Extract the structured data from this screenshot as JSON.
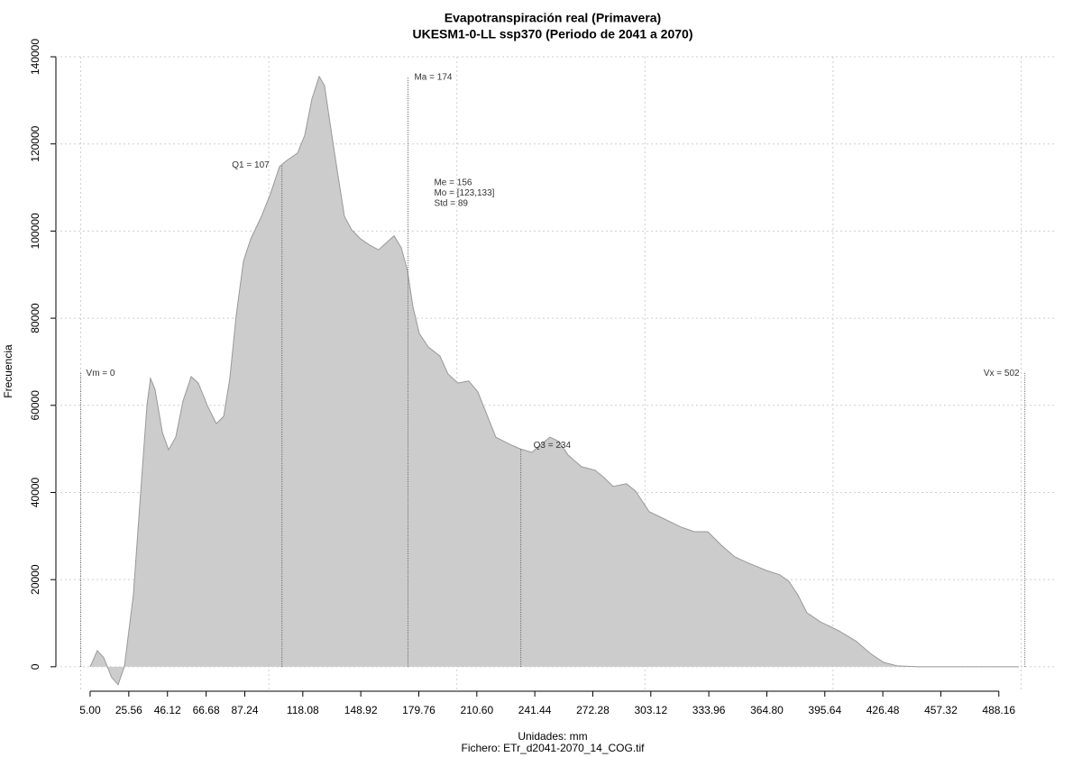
{
  "chart_data": {
    "type": "area",
    "title": "Evapotranspiración real (Primavera)",
    "subtitle": "UKESM1-0-LL ssp370 (Periodo de 2041 a 2070)",
    "x_label": "Unidades: mm",
    "caption": "Fichero: ETr_d2041-2070_14_COG.tif",
    "y_label": "Frecuencia",
    "color": "#cccccc",
    "line_color": "#999999",
    "grid": true,
    "xlim": [
      -13.2,
      518
    ],
    "ylim": [
      -5200,
      140000
    ],
    "xticks": [
      {
        "value": 5.0,
        "label": "5.00"
      },
      {
        "value": 25.56,
        "label": "25.56"
      },
      {
        "value": 46.12,
        "label": "46.12"
      },
      {
        "value": 66.68,
        "label": "66.68"
      },
      {
        "value": 87.24,
        "label": "87.24"
      },
      {
        "value": 118.08,
        "label": "118.08"
      },
      {
        "value": 148.92,
        "label": "148.92"
      },
      {
        "value": 179.76,
        "label": "179.76"
      },
      {
        "value": 210.6,
        "label": "210.60"
      },
      {
        "value": 241.44,
        "label": "241.44"
      },
      {
        "value": 272.28,
        "label": "272.28"
      },
      {
        "value": 303.12,
        "label": "303.12"
      },
      {
        "value": 333.96,
        "label": "333.96"
      },
      {
        "value": 364.8,
        "label": "364.80"
      },
      {
        "value": 395.64,
        "label": "395.64"
      },
      {
        "value": 426.48,
        "label": "426.48"
      },
      {
        "value": 457.32,
        "label": "457.32"
      },
      {
        "value": 488.16,
        "label": "488.16"
      }
    ],
    "xgrid": [
      0,
      100,
      200,
      300,
      400,
      500
    ],
    "yticks": [
      0,
      20000,
      40000,
      60000,
      80000,
      100000,
      120000,
      140000
    ],
    "x": [
      5,
      8.8,
      12.2,
      16.5,
      19.9,
      23.2,
      28.0,
      32.8,
      35.2,
      37.1,
      39.5,
      43.4,
      46.7,
      50.5,
      54.4,
      58.7,
      62.5,
      67.3,
      72.1,
      76.0,
      79.3,
      82.7,
      86.5,
      90.4,
      96.1,
      100.9,
      105.7,
      109.5,
      115.3,
      119.1,
      122.9,
      126.8,
      129.6,
      133.5,
      136.8,
      140.2,
      144.0,
      148.8,
      153.6,
      158.4,
      162.2,
      166.6,
      170.4,
      173.7,
      176.6,
      180.0,
      184.8,
      191.0,
      195.3,
      200.6,
      206.3,
      211.1,
      215.9,
      220.7,
      227.9,
      233.7,
      239.9,
      243.7,
      249.5,
      254.3,
      259.1,
      266.3,
      273.5,
      278.3,
      283.1,
      290.2,
      295.0,
      302.2,
      309.4,
      319.0,
      326.2,
      333.4,
      340.6,
      347.8,
      355.0,
      364.6,
      371.7,
      376.5,
      381.3,
      386.1,
      393.3,
      402.9,
      412.5,
      419.7,
      426.9,
      434.1,
      446.1,
      498.8
    ],
    "values": [
      0,
      3700,
      2100,
      -2500,
      -4100,
      0,
      16500,
      45500,
      60000,
      66200,
      63700,
      53800,
      49800,
      52700,
      61000,
      66600,
      65100,
      60000,
      55800,
      57500,
      66200,
      80700,
      93100,
      98200,
      103400,
      108600,
      114800,
      116200,
      117900,
      122000,
      130300,
      135500,
      133400,
      122000,
      112700,
      103400,
      100300,
      98200,
      96800,
      95700,
      97200,
      98900,
      96200,
      91000,
      82700,
      76500,
      73400,
      71300,
      67200,
      65100,
      65600,
      63100,
      57900,
      52700,
      51100,
      50000,
      49200,
      50700,
      52700,
      51700,
      48600,
      45900,
      45100,
      43400,
      41400,
      42000,
      40300,
      35600,
      34100,
      32100,
      31000,
      31000,
      27900,
      25200,
      23800,
      22100,
      21100,
      19600,
      16500,
      12400,
      10300,
      8300,
      5800,
      3100,
      1000,
      200,
      0,
      0
    ],
    "annotations": {
      "min": {
        "label": "Vm = 0",
        "value": 0
      },
      "max": {
        "label": "Vx = 502",
        "value": 502
      },
      "q1": {
        "label": "Q1 = 107",
        "value": 107
      },
      "q3": {
        "label": "Q3 = 234",
        "value": 234
      },
      "mean": {
        "label": "Ma = 174",
        "value": 174
      },
      "stats": [
        "Me = 156",
        "Mo = [123,133]",
        "Std = 89"
      ]
    }
  }
}
